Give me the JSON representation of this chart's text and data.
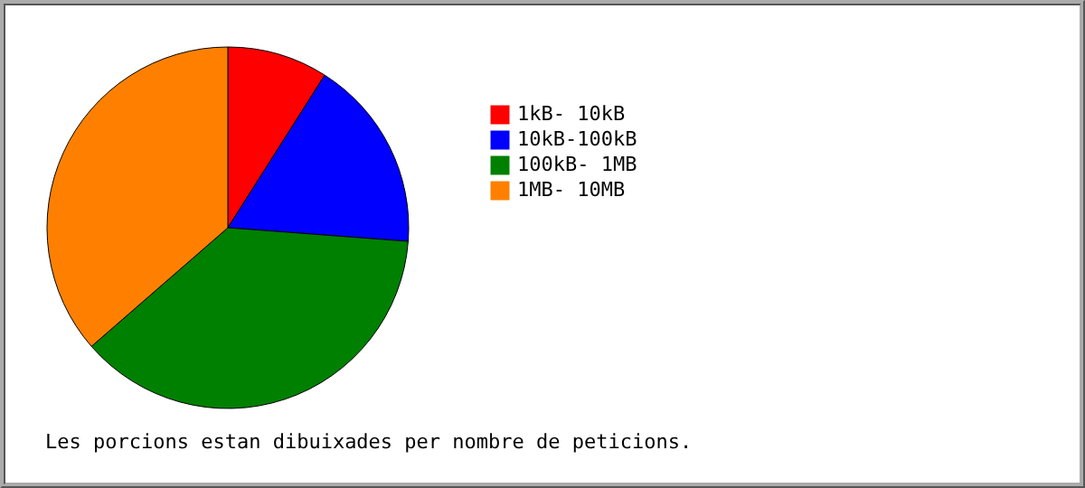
{
  "chart_data": {
    "type": "pie",
    "categories": [
      "1kB- 10kB",
      "10kB-100kB",
      "100kB- 1MB",
      "1MB- 10MB"
    ],
    "values": [
      9,
      17.2,
      37.4,
      36.4
    ],
    "colors": [
      "#ff0000",
      "#0000ff",
      "#008000",
      "#ff8000"
    ],
    "legend": "right",
    "annotations": [
      "Les porcions estan dibuixades per nombre de peticions."
    ]
  }
}
